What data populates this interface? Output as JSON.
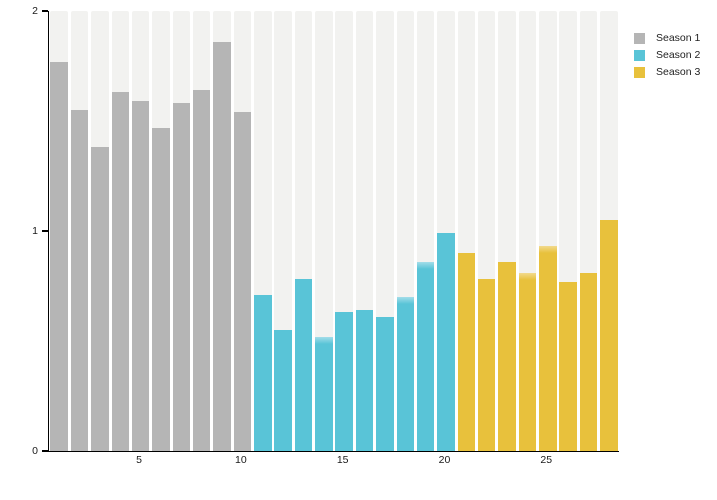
{
  "chart_data": {
    "type": "bar",
    "title": "",
    "xlabel": "",
    "ylabel": "",
    "ylim": [
      0,
      2
    ],
    "yticks": [
      0,
      1,
      2
    ],
    "xticks": [
      5,
      10,
      15,
      20,
      25
    ],
    "x_range": [
      1,
      28
    ],
    "grid": false,
    "background_bars": true,
    "background_bar_color": "#f2f2f0",
    "axis_color": "#000000",
    "tick_label_color": "#1a1a1a",
    "legend_position": "top-right-outside",
    "soft_top_episodes": [
      14,
      18,
      19,
      24,
      25
    ],
    "series": [
      {
        "name": "Season 1",
        "color": "#b5b5b5",
        "color_light": "#d2d2d2",
        "start_episode": 1,
        "values": [
          1.77,
          1.55,
          1.38,
          1.63,
          1.59,
          1.47,
          1.58,
          1.64,
          1.86,
          1.54
        ]
      },
      {
        "name": "Season 2",
        "color": "#59c4d7",
        "color_light": "#a3dde9",
        "start_episode": 11,
        "values": [
          0.71,
          0.55,
          0.78,
          0.52,
          0.63,
          0.64,
          0.61,
          0.7,
          0.86,
          0.99
        ]
      },
      {
        "name": "Season 3",
        "color": "#e8c13c",
        "color_light": "#f2da8e",
        "start_episode": 21,
        "values": [
          0.9,
          0.78,
          0.86,
          0.81,
          0.93,
          0.77,
          0.81,
          1.05
        ]
      }
    ]
  }
}
